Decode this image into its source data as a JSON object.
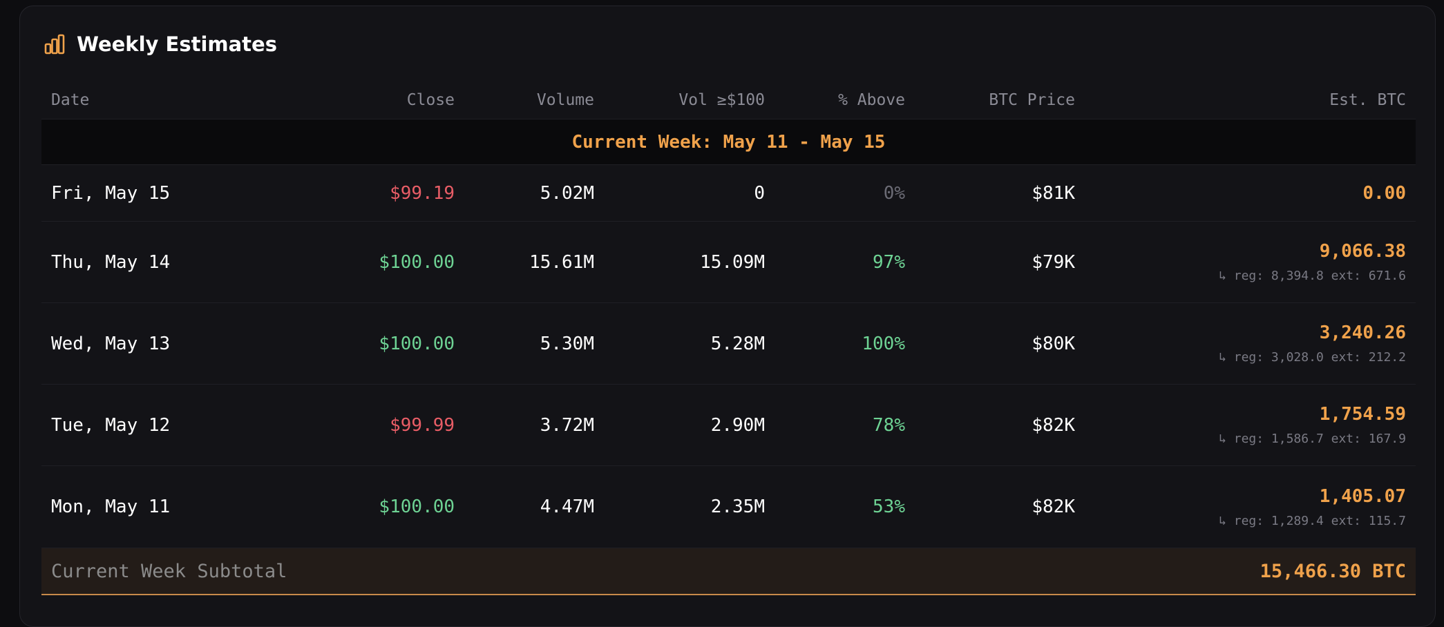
{
  "card": {
    "title": "Weekly Estimates",
    "icon": "bar-chart-icon",
    "accent_color": "#f0a24b"
  },
  "table": {
    "headers": {
      "date": "Date",
      "close": "Close",
      "volume": "Volume",
      "vol100": "Vol ≥$100",
      "above": "% Above",
      "btc": "BTC Price",
      "est": "Est. BTC"
    },
    "week_label": "Current Week: May 11 - May 15",
    "rows": [
      {
        "date": "Fri, May 15",
        "close": "$99.19",
        "close_status": "down",
        "volume": "5.02M",
        "vol100": "0",
        "above": "0%",
        "above_status": "muted",
        "btc": "$81K",
        "est": "0.00",
        "est_detail": ""
      },
      {
        "date": "Thu, May 14",
        "close": "$100.00",
        "close_status": "up",
        "volume": "15.61M",
        "vol100": "15.09M",
        "above": "97%",
        "above_status": "up",
        "btc": "$79K",
        "est": "9,066.38",
        "est_detail": "↳ reg: 8,394.8 ext: 671.6"
      },
      {
        "date": "Wed, May 13",
        "close": "$100.00",
        "close_status": "up",
        "volume": "5.30M",
        "vol100": "5.28M",
        "above": "100%",
        "above_status": "up",
        "btc": "$80K",
        "est": "3,240.26",
        "est_detail": "↳ reg: 3,028.0 ext: 212.2"
      },
      {
        "date": "Tue, May 12",
        "close": "$99.99",
        "close_status": "down",
        "volume": "3.72M",
        "vol100": "2.90M",
        "above": "78%",
        "above_status": "up",
        "btc": "$82K",
        "est": "1,754.59",
        "est_detail": "↳ reg: 1,586.7 ext: 167.9"
      },
      {
        "date": "Mon, May 11",
        "close": "$100.00",
        "close_status": "up",
        "volume": "4.47M",
        "vol100": "2.35M",
        "above": "53%",
        "above_status": "up",
        "btc": "$82K",
        "est": "1,405.07",
        "est_detail": "↳ reg: 1,289.4 ext: 115.7"
      }
    ],
    "subtotal": {
      "label": "Current Week Subtotal",
      "value": "15,466.30 BTC"
    }
  }
}
